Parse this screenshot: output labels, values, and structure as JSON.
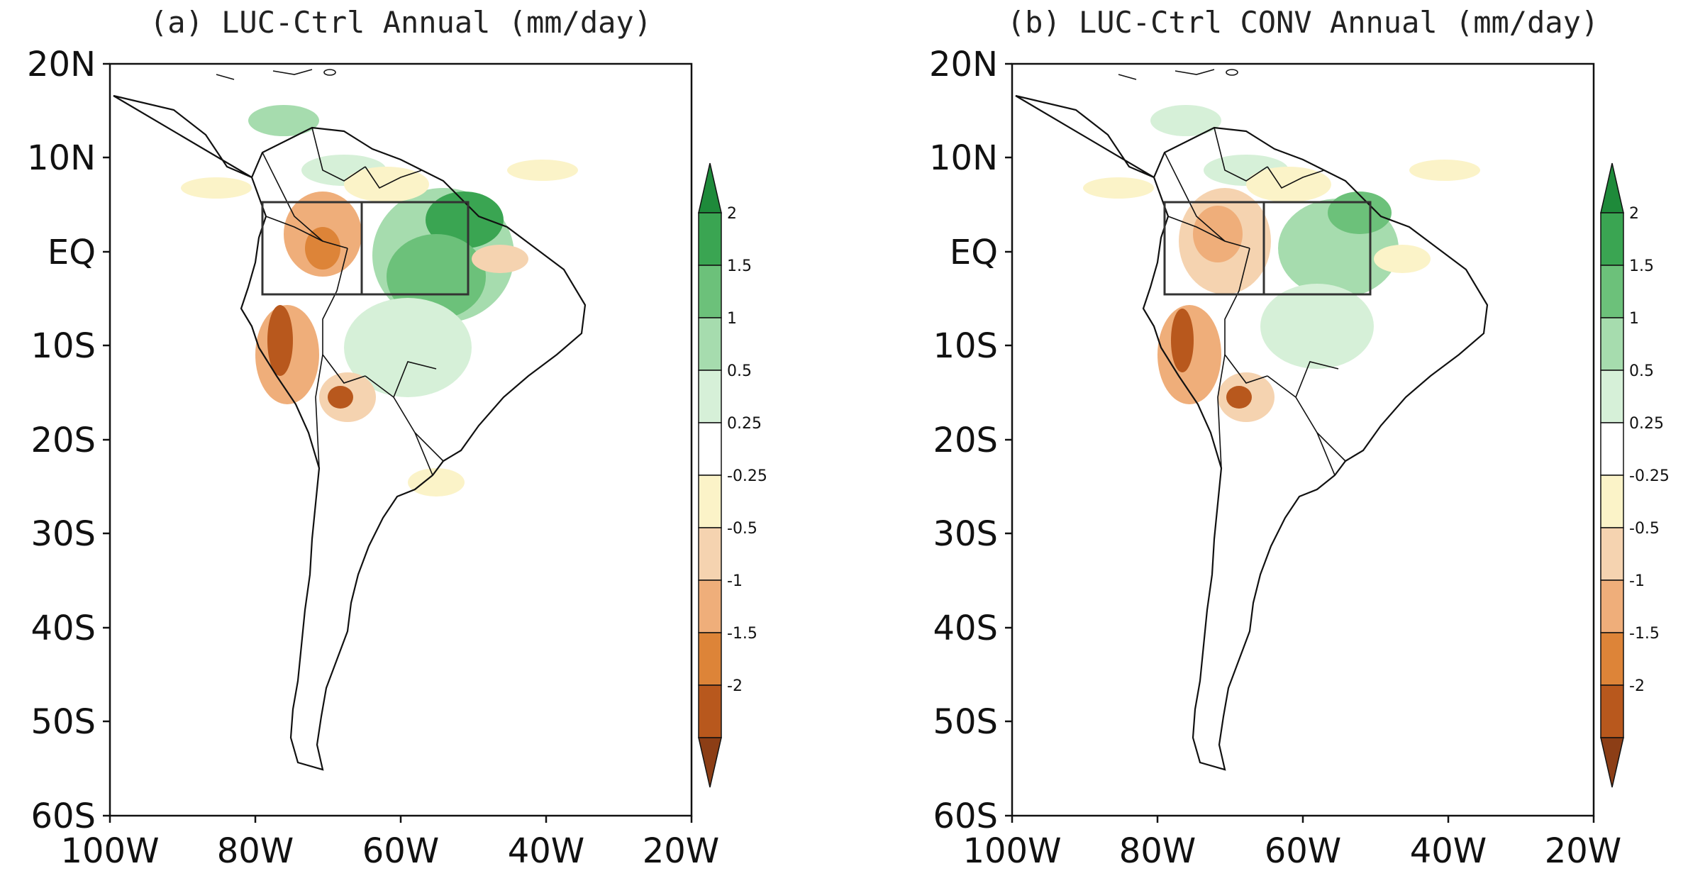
{
  "figure": {
    "panels": [
      {
        "id": "a",
        "title": "(a) LUC-Ctrl Annual (mm/day)",
        "y_tick_labels": [
          "20N",
          "10N",
          "EQ",
          "10S",
          "20S",
          "30S",
          "40S",
          "50S",
          "60S"
        ],
        "x_tick_labels": [
          "100W",
          "80W",
          "60W",
          "40W",
          "20W"
        ],
        "colorbar_labels": [
          "2",
          "1.5",
          "1",
          "0.5",
          "0.25",
          "-0.25",
          "-0.5",
          "-1",
          "-1.5",
          "-2"
        ],
        "map_extent": {
          "lon": [
            -100,
            -20
          ],
          "lat": [
            -60,
            20
          ]
        },
        "study_box": {
          "lon": [
            -79,
            -50
          ],
          "lat": [
            -5,
            5
          ],
          "divider_lon": -65
        }
      },
      {
        "id": "b",
        "title": "(b) LUC-Ctrl CONV Annual (mm/day)",
        "y_tick_labels": [
          "20N",
          "10N",
          "EQ",
          "10S",
          "20S",
          "30S",
          "40S",
          "50S",
          "60S"
        ],
        "x_tick_labels": [
          "100W",
          "80W",
          "60W",
          "40W",
          "20W"
        ],
        "colorbar_labels": [
          "2",
          "1.5",
          "1",
          "0.5",
          "0.25",
          "-0.25",
          "-0.5",
          "-1",
          "-1.5",
          "-2"
        ],
        "map_extent": {
          "lon": [
            -100,
            -20
          ],
          "lat": [
            -60,
            20
          ]
        },
        "study_box": {
          "lon": [
            -79,
            -50
          ],
          "lat": [
            -5,
            5
          ],
          "divider_lon": -65
        }
      }
    ],
    "colorbar_colors": [
      "#1e8a3a",
      "#3aa552",
      "#6cc17a",
      "#a6dcae",
      "#d6f0d8",
      "#ffffff",
      "#fbf3c8",
      "#f5d3b0",
      "#efae7a",
      "#dd8438",
      "#b8581d",
      "#8c3e16"
    ]
  }
}
